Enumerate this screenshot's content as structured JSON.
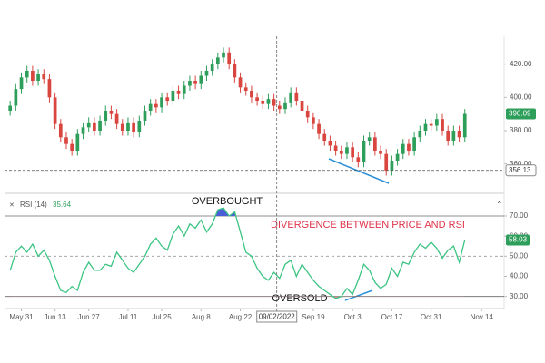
{
  "chart_data": [
    {
      "type": "candlestick",
      "up_color": "#2e9e5b",
      "down_color": "#d9453f",
      "xlim": [
        -1,
        88
      ],
      "ylim": [
        344,
        434
      ],
      "yticks": [
        {
          "value": 420,
          "label": "420.00"
        },
        {
          "value": 400,
          "label": "400.00"
        },
        {
          "value": 380,
          "label": "380.00"
        },
        {
          "value": 360,
          "label": "360.00"
        }
      ],
      "open": [
        392,
        395,
        405,
        412,
        416,
        410,
        414,
        411,
        400,
        384,
        376,
        372,
        368,
        378,
        382,
        385,
        380,
        386,
        392,
        390,
        384,
        380,
        385,
        379,
        386,
        392,
        396,
        394,
        400,
        398,
        404,
        402,
        407,
        410,
        408,
        413,
        416,
        420,
        424,
        427,
        420,
        412,
        406,
        404,
        400,
        398,
        396,
        399,
        395,
        393,
        397,
        403,
        398,
        392,
        388,
        384,
        378,
        374,
        371,
        368,
        366,
        370,
        364,
        361,
        374,
        376,
        368,
        366,
        356,
        362,
        366,
        372,
        368,
        376,
        380,
        384,
        383,
        387,
        380,
        374,
        380,
        376
      ],
      "high": [
        398,
        408,
        415,
        419,
        419,
        417,
        417,
        414,
        403,
        387,
        379,
        375,
        381,
        385,
        388,
        388,
        389,
        395,
        395,
        393,
        387,
        388,
        388,
        389,
        395,
        399,
        399,
        403,
        403,
        407,
        407,
        410,
        413,
        413,
        416,
        419,
        423,
        427,
        430,
        430,
        423,
        415,
        409,
        407,
        403,
        401,
        402,
        402,
        398,
        400,
        406,
        406,
        401,
        395,
        391,
        387,
        381,
        377,
        374,
        371,
        373,
        373,
        367,
        377,
        379,
        379,
        371,
        369,
        365,
        369,
        375,
        375,
        379,
        383,
        387,
        387,
        390,
        390,
        383,
        383,
        383,
        393
      ],
      "low": [
        389,
        392,
        402,
        409,
        407,
        407,
        408,
        397,
        381,
        373,
        369,
        365,
        365,
        375,
        379,
        377,
        377,
        383,
        387,
        381,
        377,
        377,
        376,
        376,
        383,
        389,
        391,
        391,
        395,
        395,
        399,
        399,
        404,
        405,
        405,
        410,
        413,
        417,
        421,
        417,
        409,
        403,
        401,
        397,
        395,
        393,
        393,
        392,
        390,
        390,
        394,
        395,
        389,
        385,
        381,
        375,
        371,
        368,
        365,
        363,
        363,
        361,
        358,
        358,
        371,
        365,
        363,
        353,
        353,
        359,
        363,
        365,
        365,
        373,
        377,
        380,
        380,
        377,
        371,
        371,
        373,
        373
      ],
      "close": [
        395,
        405,
        412,
        416,
        410,
        414,
        411,
        400,
        384,
        376,
        372,
        368,
        378,
        382,
        385,
        380,
        386,
        392,
        390,
        384,
        380,
        385,
        379,
        386,
        392,
        396,
        394,
        400,
        398,
        404,
        402,
        407,
        410,
        408,
        413,
        416,
        420,
        424,
        427,
        420,
        412,
        406,
        404,
        400,
        398,
        396,
        399,
        395,
        393,
        397,
        403,
        398,
        392,
        388,
        384,
        378,
        374,
        371,
        368,
        366,
        370,
        364,
        361,
        374,
        376,
        368,
        366,
        356,
        362,
        366,
        372,
        368,
        376,
        380,
        384,
        383,
        387,
        380,
        374,
        380,
        376,
        390.09
      ],
      "crosshair": {
        "x": 47.5,
        "x_label": "09/02/2022",
        "price": 356.13
      }
    },
    {
      "type": "line",
      "title": "RSI (14)",
      "readout": 35.64,
      "color": "#3cc483",
      "overbought_color": "#4a5fd6",
      "oversold_color": "#f08a8a",
      "xlim": [
        -1,
        88
      ],
      "ylim": [
        24,
        79
      ],
      "yticks": [
        {
          "value": 70,
          "label": "70.00"
        },
        {
          "value": 60,
          "label": "60.00"
        },
        {
          "value": 50,
          "label": "50.00"
        },
        {
          "value": 40,
          "label": "40.00"
        },
        {
          "value": 30,
          "label": "30.00"
        }
      ],
      "reference_lines": [
        {
          "value": 70,
          "style": "solid"
        },
        {
          "value": 50,
          "style": "dashed"
        },
        {
          "value": 30,
          "style": "solid"
        }
      ],
      "values": [
        43,
        52,
        55,
        52,
        56,
        50,
        53,
        48,
        40,
        33,
        32,
        35,
        33,
        42,
        47,
        43,
        43,
        46,
        45,
        52,
        48,
        44,
        42,
        46,
        50,
        56,
        59,
        55,
        53,
        61,
        65,
        60,
        66,
        64,
        68,
        62,
        66,
        73,
        74,
        70,
        72,
        62,
        52,
        50,
        44,
        40,
        38,
        42,
        39,
        46,
        48,
        40,
        46,
        42,
        38,
        35,
        33,
        31,
        29,
        30,
        34,
        31,
        38,
        46,
        43,
        37,
        34,
        36,
        44,
        40,
        47,
        46,
        52,
        56,
        54,
        57,
        54,
        49,
        53,
        55,
        47,
        58.03
      ],
      "xticks": [
        {
          "value": 2,
          "label": "May 31"
        },
        {
          "value": 8,
          "label": "Jun 13"
        },
        {
          "value": 14,
          "label": "Jun 27"
        },
        {
          "value": 21,
          "label": "Jul 11"
        },
        {
          "value": 27,
          "label": "Jul 25"
        },
        {
          "value": 34,
          "label": "Aug 8"
        },
        {
          "value": 41,
          "label": "Aug 22"
        },
        {
          "value": 54,
          "label": "Sep 19"
        },
        {
          "value": 61,
          "label": "Oct 3"
        },
        {
          "value": 68,
          "label": "Oct 17"
        },
        {
          "value": 75,
          "label": "Oct 31"
        },
        {
          "value": 84,
          "label": "Nov 14"
        }
      ],
      "annotations": [
        "OVERBOUGHT",
        "DIVERGENCE BETWEEN PRICE AND RSI",
        "OVERSOLD"
      ]
    }
  ]
}
